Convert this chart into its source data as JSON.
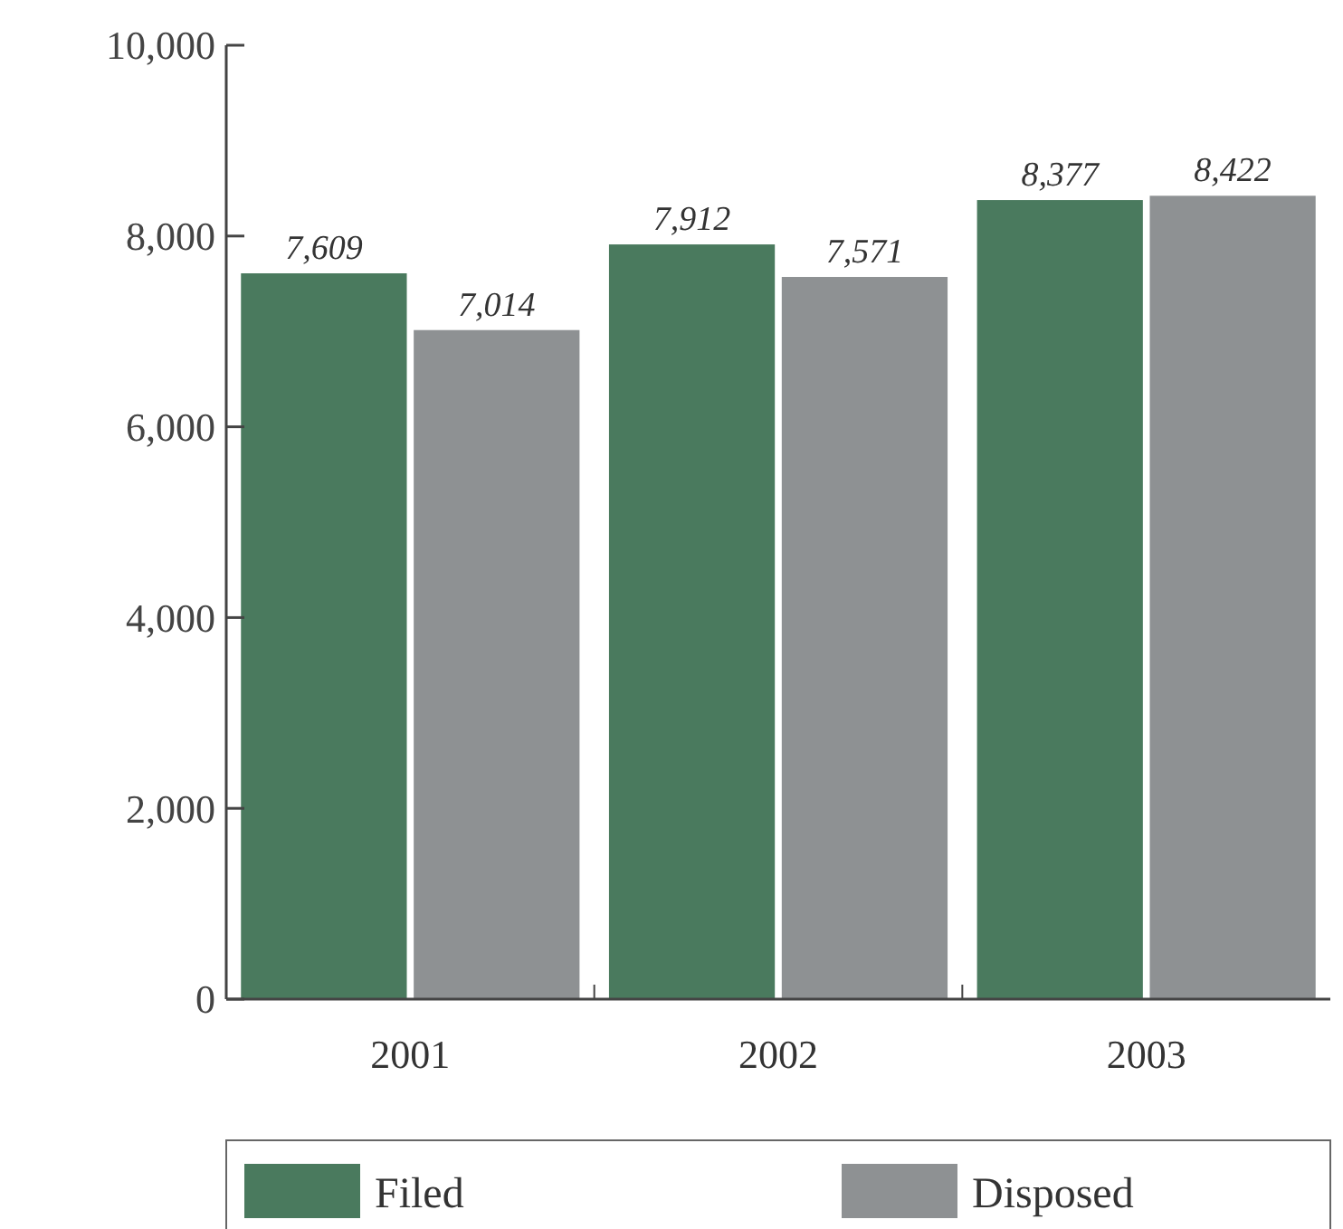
{
  "chart_data": {
    "type": "bar",
    "categories": [
      "2001",
      "2002",
      "2003"
    ],
    "series": [
      {
        "name": "Filed",
        "color": "#4a7a5e",
        "values": [
          7609,
          7912,
          8377
        ]
      },
      {
        "name": "Disposed",
        "color": "#8e9193",
        "values": [
          7014,
          7571,
          8422
        ]
      }
    ],
    "ylim": [
      0,
      10000
    ],
    "yticks": [
      {
        "value": 0,
        "label": "0"
      },
      {
        "value": 2000,
        "label": "2,000"
      },
      {
        "value": 4000,
        "label": "4,000"
      },
      {
        "value": 6000,
        "label": "6,000"
      },
      {
        "value": 8000,
        "label": "8,000"
      },
      {
        "value": 10000,
        "label": "10,000"
      }
    ],
    "value_labels": [
      [
        "7,609",
        "7,912",
        "8,377"
      ],
      [
        "7,014",
        "7,571",
        "8,422"
      ]
    ],
    "legend": "bottom",
    "grid": false
  }
}
